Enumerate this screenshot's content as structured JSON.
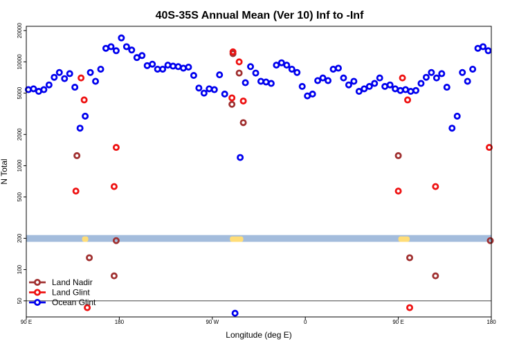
{
  "chart_data": {
    "type": "scatter",
    "title": "40S-35S Annual Mean (Ver 10)   Inf to -Inf",
    "xlabel": "Longitude (deg E)",
    "ylabel": "N Total",
    "x_ticks": [
      {
        "value": 90,
        "label": "90 E"
      },
      {
        "value": 180,
        "label": "180"
      },
      {
        "value": 270,
        "label": "90 W"
      },
      {
        "value": 360,
        "label": "0"
      },
      {
        "value": 450,
        "label": "90 E"
      },
      {
        "value": 540,
        "label": "180"
      }
    ],
    "xlim": [
      90,
      540
    ],
    "y_scale": "log",
    "ylim": [
      35,
      22000
    ],
    "y_ticks": [
      50,
      100,
      200,
      500,
      1000,
      2000,
      5000,
      10000,
      20000
    ],
    "reference_line": 50,
    "legend_position": "bottom-left",
    "colors": {
      "land_nadir": "#a03030",
      "land_glint": "#ee1111",
      "ocean_glint": "#0000ee",
      "band": "#a3bcdc",
      "land_mask": "#ffdd77"
    },
    "band": {
      "y_low": 185,
      "y_high": 215
    },
    "land_segments": [
      [
        144,
        150
      ],
      [
        287,
        300
      ],
      [
        450,
        461
      ]
    ],
    "series": [
      {
        "name": "Land Nadir",
        "color": "#a03030",
        "points": [
          [
            139,
            1250
          ],
          [
            151,
            130
          ],
          [
            175,
            87
          ],
          [
            177,
            190
          ],
          [
            289,
            3900
          ],
          [
            290,
            12000
          ],
          [
            296,
            7800
          ],
          [
            300,
            2600
          ],
          [
            450,
            1250
          ],
          [
            461,
            130
          ],
          [
            486,
            87
          ],
          [
            539,
            190
          ]
        ]
      },
      {
        "name": "Land Glint",
        "color": "#ee1111",
        "points": [
          [
            138,
            570
          ],
          [
            143,
            7000
          ],
          [
            146,
            4300
          ],
          [
            149,
            43
          ],
          [
            175,
            630
          ],
          [
            177,
            1500
          ],
          [
            289,
            4500
          ],
          [
            290,
            12500
          ],
          [
            296,
            10000
          ],
          [
            300,
            4200
          ],
          [
            450,
            570
          ],
          [
            454,
            7000
          ],
          [
            459,
            4300
          ],
          [
            461,
            43
          ],
          [
            486,
            630
          ],
          [
            538,
            1500
          ]
        ]
      },
      {
        "name": "Ocean Glint",
        "color": "#0000ee",
        "points": [
          [
            92,
            5400
          ],
          [
            97,
            5500
          ],
          [
            102,
            5200
          ],
          [
            107,
            5400
          ],
          [
            112,
            6000
          ],
          [
            117,
            7100
          ],
          [
            122,
            7900
          ],
          [
            127,
            6900
          ],
          [
            132,
            7700
          ],
          [
            137,
            5700
          ],
          [
            142,
            2300
          ],
          [
            147,
            3000
          ],
          [
            152,
            7900
          ],
          [
            157,
            6500
          ],
          [
            162,
            8500
          ],
          [
            167,
            13500
          ],
          [
            172,
            14000
          ],
          [
            177,
            12800
          ],
          [
            182,
            17000
          ],
          [
            187,
            14000
          ],
          [
            192,
            13000
          ],
          [
            197,
            11000
          ],
          [
            202,
            11500
          ],
          [
            207,
            9200
          ],
          [
            212,
            9500
          ],
          [
            217,
            8500
          ],
          [
            222,
            8500
          ],
          [
            227,
            9300
          ],
          [
            232,
            9100
          ],
          [
            237,
            9000
          ],
          [
            242,
            8700
          ],
          [
            247,
            8900
          ],
          [
            252,
            7400
          ],
          [
            257,
            5600
          ],
          [
            262,
            5000
          ],
          [
            267,
            5500
          ],
          [
            272,
            5400
          ],
          [
            277,
            7500
          ],
          [
            282,
            4900
          ],
          [
            292,
            38
          ],
          [
            297,
            1200
          ],
          [
            302,
            6300
          ],
          [
            307,
            9000
          ],
          [
            312,
            7800
          ],
          [
            317,
            6500
          ],
          [
            322,
            6400
          ],
          [
            327,
            6200
          ],
          [
            332,
            9300
          ],
          [
            337,
            9800
          ],
          [
            342,
            9300
          ],
          [
            347,
            8500
          ],
          [
            352,
            7900
          ],
          [
            357,
            5800
          ],
          [
            362,
            4700
          ],
          [
            367,
            4900
          ],
          [
            372,
            6600
          ],
          [
            377,
            7000
          ],
          [
            382,
            6600
          ],
          [
            387,
            8500
          ],
          [
            392,
            8700
          ],
          [
            397,
            7000
          ],
          [
            402,
            6000
          ],
          [
            407,
            6500
          ],
          [
            412,
            5200
          ],
          [
            417,
            5500
          ],
          [
            422,
            5800
          ],
          [
            427,
            6200
          ],
          [
            432,
            7000
          ],
          [
            437,
            5800
          ],
          [
            442,
            6000
          ],
          [
            447,
            5500
          ],
          [
            452,
            5300
          ],
          [
            457,
            5400
          ],
          [
            462,
            5200
          ],
          [
            467,
            5300
          ],
          [
            472,
            6200
          ],
          [
            477,
            7100
          ],
          [
            482,
            7900
          ],
          [
            487,
            7000
          ],
          [
            492,
            7700
          ],
          [
            497,
            5700
          ],
          [
            502,
            2300
          ],
          [
            507,
            3000
          ],
          [
            512,
            7900
          ],
          [
            517,
            6500
          ],
          [
            522,
            8500
          ],
          [
            527,
            13500
          ],
          [
            532,
            14000
          ],
          [
            537,
            12800
          ]
        ]
      }
    ]
  }
}
